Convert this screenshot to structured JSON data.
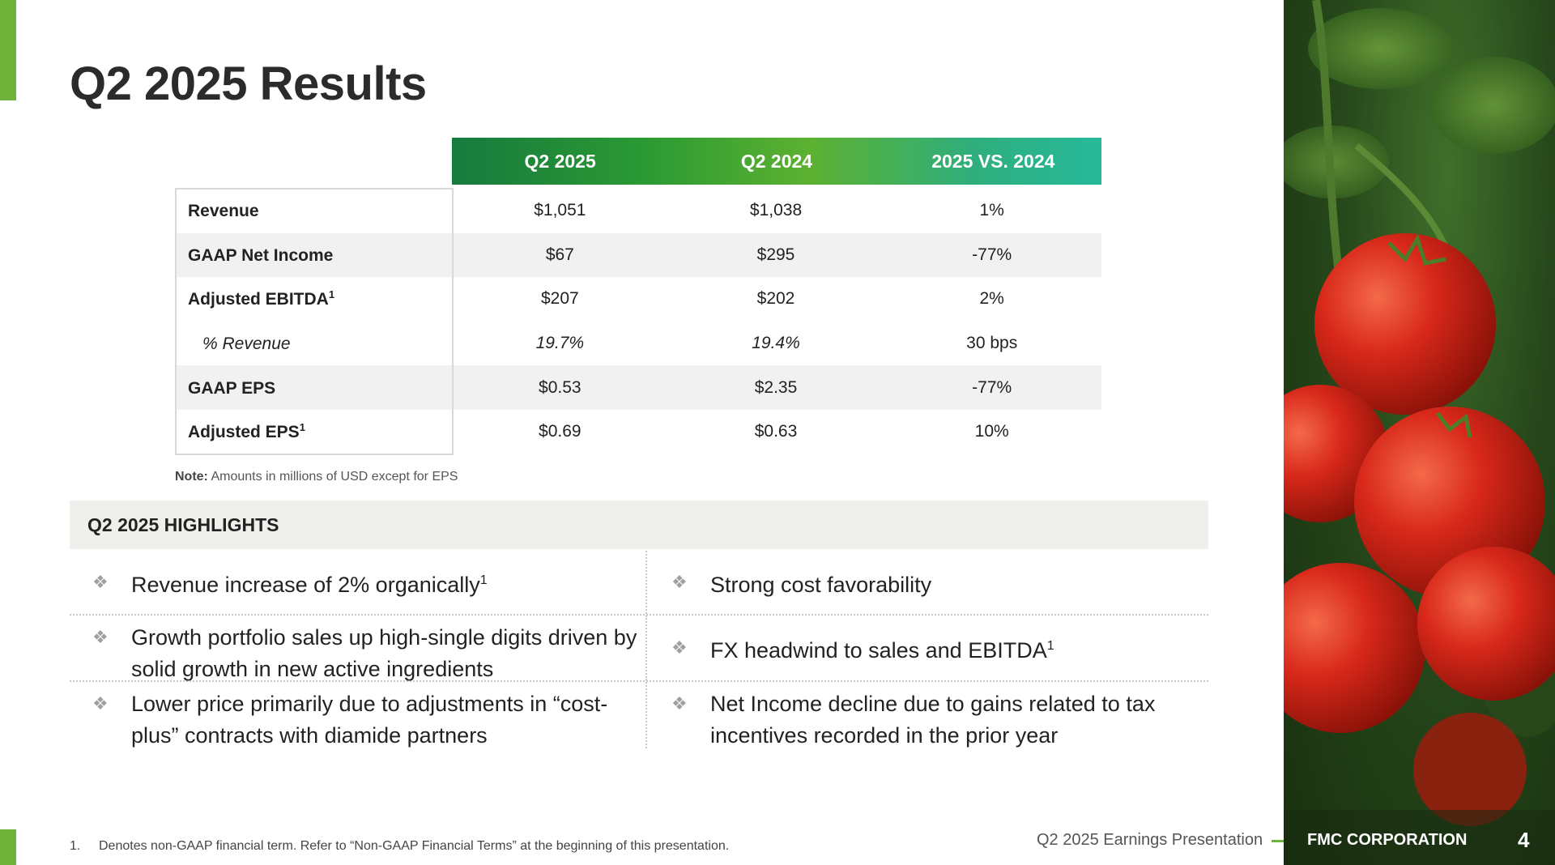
{
  "title": "Q2 2025 Results",
  "table": {
    "headers": [
      "Q2 2025",
      "Q2 2024",
      "2025 VS. 2024"
    ],
    "rows": [
      {
        "label": "Revenue",
        "sup": "",
        "values": [
          "$1,051",
          "$1,038",
          "1%"
        ]
      },
      {
        "label": "GAAP Net Income",
        "sup": "",
        "values": [
          "$67",
          "$295",
          "-77%"
        ]
      },
      {
        "label": "Adjusted EBITDA",
        "sup": "1",
        "values": [
          "$207",
          "$202",
          "2%"
        ]
      },
      {
        "label": "% Revenue",
        "sup": "",
        "values": [
          "19.7%",
          "19.4%",
          "30 bps"
        ]
      },
      {
        "label": "GAAP EPS",
        "sup": "",
        "values": [
          "$0.53",
          "$2.35",
          "-77%"
        ]
      },
      {
        "label": "Adjusted EPS",
        "sup": "1",
        "values": [
          "$0.69",
          "$0.63",
          "10%"
        ]
      }
    ]
  },
  "note": {
    "label": "Note:",
    "text": "Amounts in millions of USD except for EPS"
  },
  "highlights": {
    "title": "Q2 2025 HIGHLIGHTS",
    "left": [
      {
        "text": "Revenue increase of 2% organically",
        "sup": "1"
      },
      {
        "text": "Growth portfolio sales up high-single digits driven by solid growth in new active ingredients",
        "sup": ""
      },
      {
        "text": "Lower price primarily due to adjustments in “cost-plus” contracts with diamide partners",
        "sup": ""
      }
    ],
    "right": [
      {
        "text": "Strong cost favorability",
        "sup": ""
      },
      {
        "text": "FX headwind to sales and EBITDA",
        "sup": "1"
      },
      {
        "text": "Net Income decline due to gains related to tax incentives recorded in the prior year",
        "sup": ""
      }
    ]
  },
  "footnote": {
    "number": "1.",
    "text": "Denotes non-GAAP financial term. Refer to “Non-GAAP Financial Terms” at the beginning of this presentation."
  },
  "footer": {
    "presentation": "Q2 2025 Earnings Presentation",
    "company": "FMC CORPORATION",
    "page": "4"
  },
  "colors": {
    "accent_green": "#6fb33a",
    "header_gradient_start": "#177a3e",
    "header_gradient_end": "#26b99a"
  },
  "icons": {
    "bullet": "diamond-bullet-icon"
  }
}
